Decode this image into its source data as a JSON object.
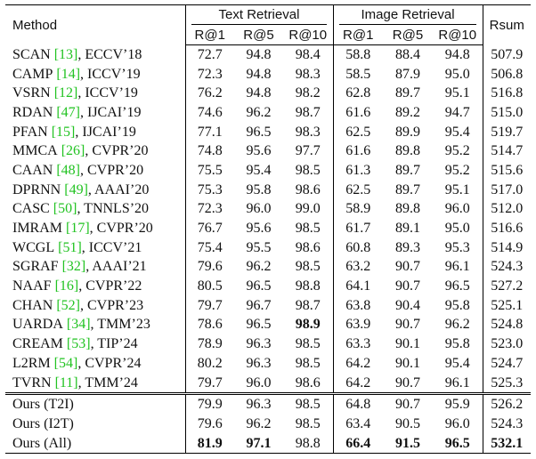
{
  "header": {
    "method": "Method",
    "groups": [
      "Text Retrieval",
      "Image Retrieval"
    ],
    "metrics": [
      "R@1",
      "R@5",
      "R@10",
      "R@1",
      "R@5",
      "R@10"
    ],
    "rsum": "Rsum"
  },
  "baselines": [
    {
      "method": {
        "name": "SCAN",
        "cite": "[13]",
        "venue": ", ECCV’18"
      },
      "values": [
        "72.7",
        "94.8",
        "98.4",
        "58.8",
        "88.4",
        "94.8",
        "507.9"
      ]
    },
    {
      "method": {
        "name": "CAMP",
        "cite": "[14]",
        "venue": ", ICCV’19"
      },
      "values": [
        "72.3",
        "94.8",
        "98.3",
        "58.5",
        "87.9",
        "95.0",
        "506.8"
      ]
    },
    {
      "method": {
        "name": "VSRN",
        "cite": "[12]",
        "venue": ", ICCV’19"
      },
      "values": [
        "76.2",
        "94.8",
        "98.2",
        "62.8",
        "89.7",
        "95.1",
        "516.8"
      ]
    },
    {
      "method": {
        "name": "RDAN",
        "cite": "[47]",
        "venue": ", IJCAI’19"
      },
      "values": [
        "74.6",
        "96.2",
        "98.7",
        "61.6",
        "89.2",
        "94.7",
        "515.0"
      ]
    },
    {
      "method": {
        "name": "PFAN",
        "cite": "[15]",
        "venue": ", IJCAI’19"
      },
      "values": [
        "77.1",
        "96.5",
        "98.3",
        "62.5",
        "89.9",
        "95.4",
        "519.7"
      ]
    },
    {
      "method": {
        "name": "MMCA",
        "cite": "[26]",
        "venue": ", CVPR’20"
      },
      "values": [
        "74.8",
        "95.6",
        "97.7",
        "61.6",
        "89.8",
        "95.2",
        "514.7"
      ]
    },
    {
      "method": {
        "name": "CAAN",
        "cite": "[48]",
        "venue": ", CVPR’20"
      },
      "values": [
        "75.5",
        "95.4",
        "98.5",
        "61.3",
        "89.7",
        "95.2",
        "515.6"
      ]
    },
    {
      "method": {
        "name": "DPRNN",
        "cite": "[49]",
        "venue": ", AAAI’20"
      },
      "values": [
        "75.3",
        "95.8",
        "98.6",
        "62.5",
        "89.7",
        "95.1",
        "517.0"
      ]
    },
    {
      "method": {
        "name": "CASC",
        "cite": "[50]",
        "venue": ", TNNLS’20"
      },
      "values": [
        "72.3",
        "96.0",
        "99.0",
        "58.9",
        "89.8",
        "96.0",
        "512.0"
      ]
    },
    {
      "method": {
        "name": "IMRAM",
        "cite": "[17]",
        "venue": ", CVPR’20"
      },
      "values": [
        "76.7",
        "95.6",
        "98.5",
        "61.7",
        "89.1",
        "95.0",
        "516.6"
      ]
    },
    {
      "method": {
        "name": "WCGL",
        "cite": "[51]",
        "venue": ", ICCV’21"
      },
      "values": [
        "75.4",
        "95.5",
        "98.6",
        "60.8",
        "89.3",
        "95.3",
        "514.9"
      ]
    },
    {
      "method": {
        "name": "SGRAF",
        "cite": "[32]",
        "venue": ", AAAI’21"
      },
      "values": [
        "79.6",
        "96.2",
        "98.5",
        "63.2",
        "90.7",
        "96.1",
        "524.3"
      ]
    },
    {
      "method": {
        "name": "NAAF",
        "cite": "[16]",
        "venue": ", CVPR’22"
      },
      "values": [
        "80.5",
        "96.5",
        "98.8",
        "64.1",
        "90.7",
        "96.5",
        "527.2"
      ]
    },
    {
      "method": {
        "name": "CHAN",
        "cite": "[52]",
        "venue": ", CVPR’23"
      },
      "values": [
        "79.7",
        "96.7",
        "98.7",
        "63.8",
        "90.4",
        "95.8",
        "525.1"
      ]
    },
    {
      "method": {
        "name": "UARDA",
        "cite": "[34]",
        "venue": ", TMM’23"
      },
      "values": [
        "78.6",
        "96.5",
        "98.9",
        "63.9",
        "90.7",
        "96.2",
        "524.8"
      ],
      "bold": [
        2
      ]
    },
    {
      "method": {
        "name": "CREAM",
        "cite": "[53]",
        "venue": ", TIP’24"
      },
      "values": [
        "78.9",
        "96.3",
        "98.5",
        "63.3",
        "90.1",
        "95.8",
        "523.0"
      ]
    },
    {
      "method": {
        "name": "L2RM",
        "cite": "[54]",
        "venue": ", CVPR’24"
      },
      "values": [
        "80.2",
        "96.3",
        "98.5",
        "64.2",
        "90.1",
        "95.4",
        "524.7"
      ]
    },
    {
      "method": {
        "name": "TVRN",
        "cite": "[11]",
        "venue": ", TMM’24"
      },
      "values": [
        "79.7",
        "96.0",
        "98.6",
        "64.2",
        "90.7",
        "96.1",
        "525.3"
      ]
    }
  ],
  "ours": [
    {
      "method": {
        "name": "Ours (T2I)"
      },
      "values": [
        "79.9",
        "96.3",
        "98.5",
        "64.8",
        "90.7",
        "95.9",
        "526.2"
      ]
    },
    {
      "method": {
        "name": "Ours (I2T)"
      },
      "values": [
        "79.6",
        "96.2",
        "98.5",
        "63.4",
        "90.5",
        "96.0",
        "524.3"
      ]
    },
    {
      "method": {
        "name": "Ours (All)"
      },
      "values": [
        "81.9",
        "97.1",
        "98.8",
        "66.4",
        "91.5",
        "96.5",
        "532.1"
      ],
      "bold": [
        0,
        1,
        3,
        4,
        5,
        6
      ]
    }
  ]
}
